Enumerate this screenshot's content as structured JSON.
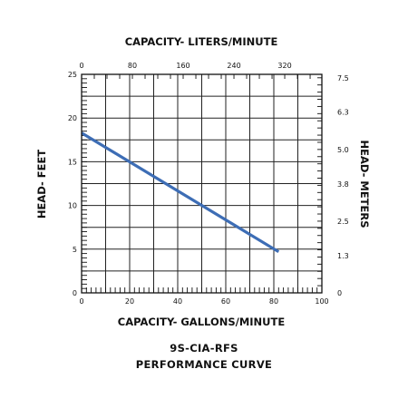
{
  "chart_data": {
    "type": "line",
    "title": "9S-CIA-RFS",
    "subtitle": "PERFORMANCE CURVE",
    "xlabel_bottom": "CAPACITY- GALLONS/MINUTE",
    "xlabel_top": "CAPACITY- LITERS/MINUTE",
    "ylabel_left": "HEAD- FEET",
    "ylabel_right": "HEAD- METERS",
    "xlim": [
      0,
      100
    ],
    "ylim": [
      0,
      25
    ],
    "x_ticks": [
      "0",
      "20",
      "40",
      "60",
      "80",
      "100"
    ],
    "x_tick_values": [
      0,
      20,
      40,
      60,
      80,
      100
    ],
    "y_ticks": [
      "0",
      "5",
      "10",
      "15",
      "20",
      "25"
    ],
    "y_tick_values": [
      0,
      5,
      10,
      15,
      20,
      25
    ],
    "top_ticks": [
      "0",
      "80",
      "160",
      "240",
      "320"
    ],
    "top_tick_values": [
      0,
      80,
      160,
      240,
      320
    ],
    "top_lim": [
      0,
      378.5
    ],
    "right_ticks": [
      "0",
      "1.3",
      "2.5",
      "3.8",
      "5.0",
      "6.3",
      "7.5"
    ],
    "right_tick_values": [
      0,
      1.3,
      2.5,
      3.8,
      5.0,
      6.3,
      7.5
    ],
    "right_lim": [
      0,
      7.62
    ],
    "grid": true,
    "series": [
      {
        "x": [
          0,
          82
        ],
        "y": [
          18.3,
          4.7
        ],
        "color": "#3d6db5"
      }
    ]
  }
}
